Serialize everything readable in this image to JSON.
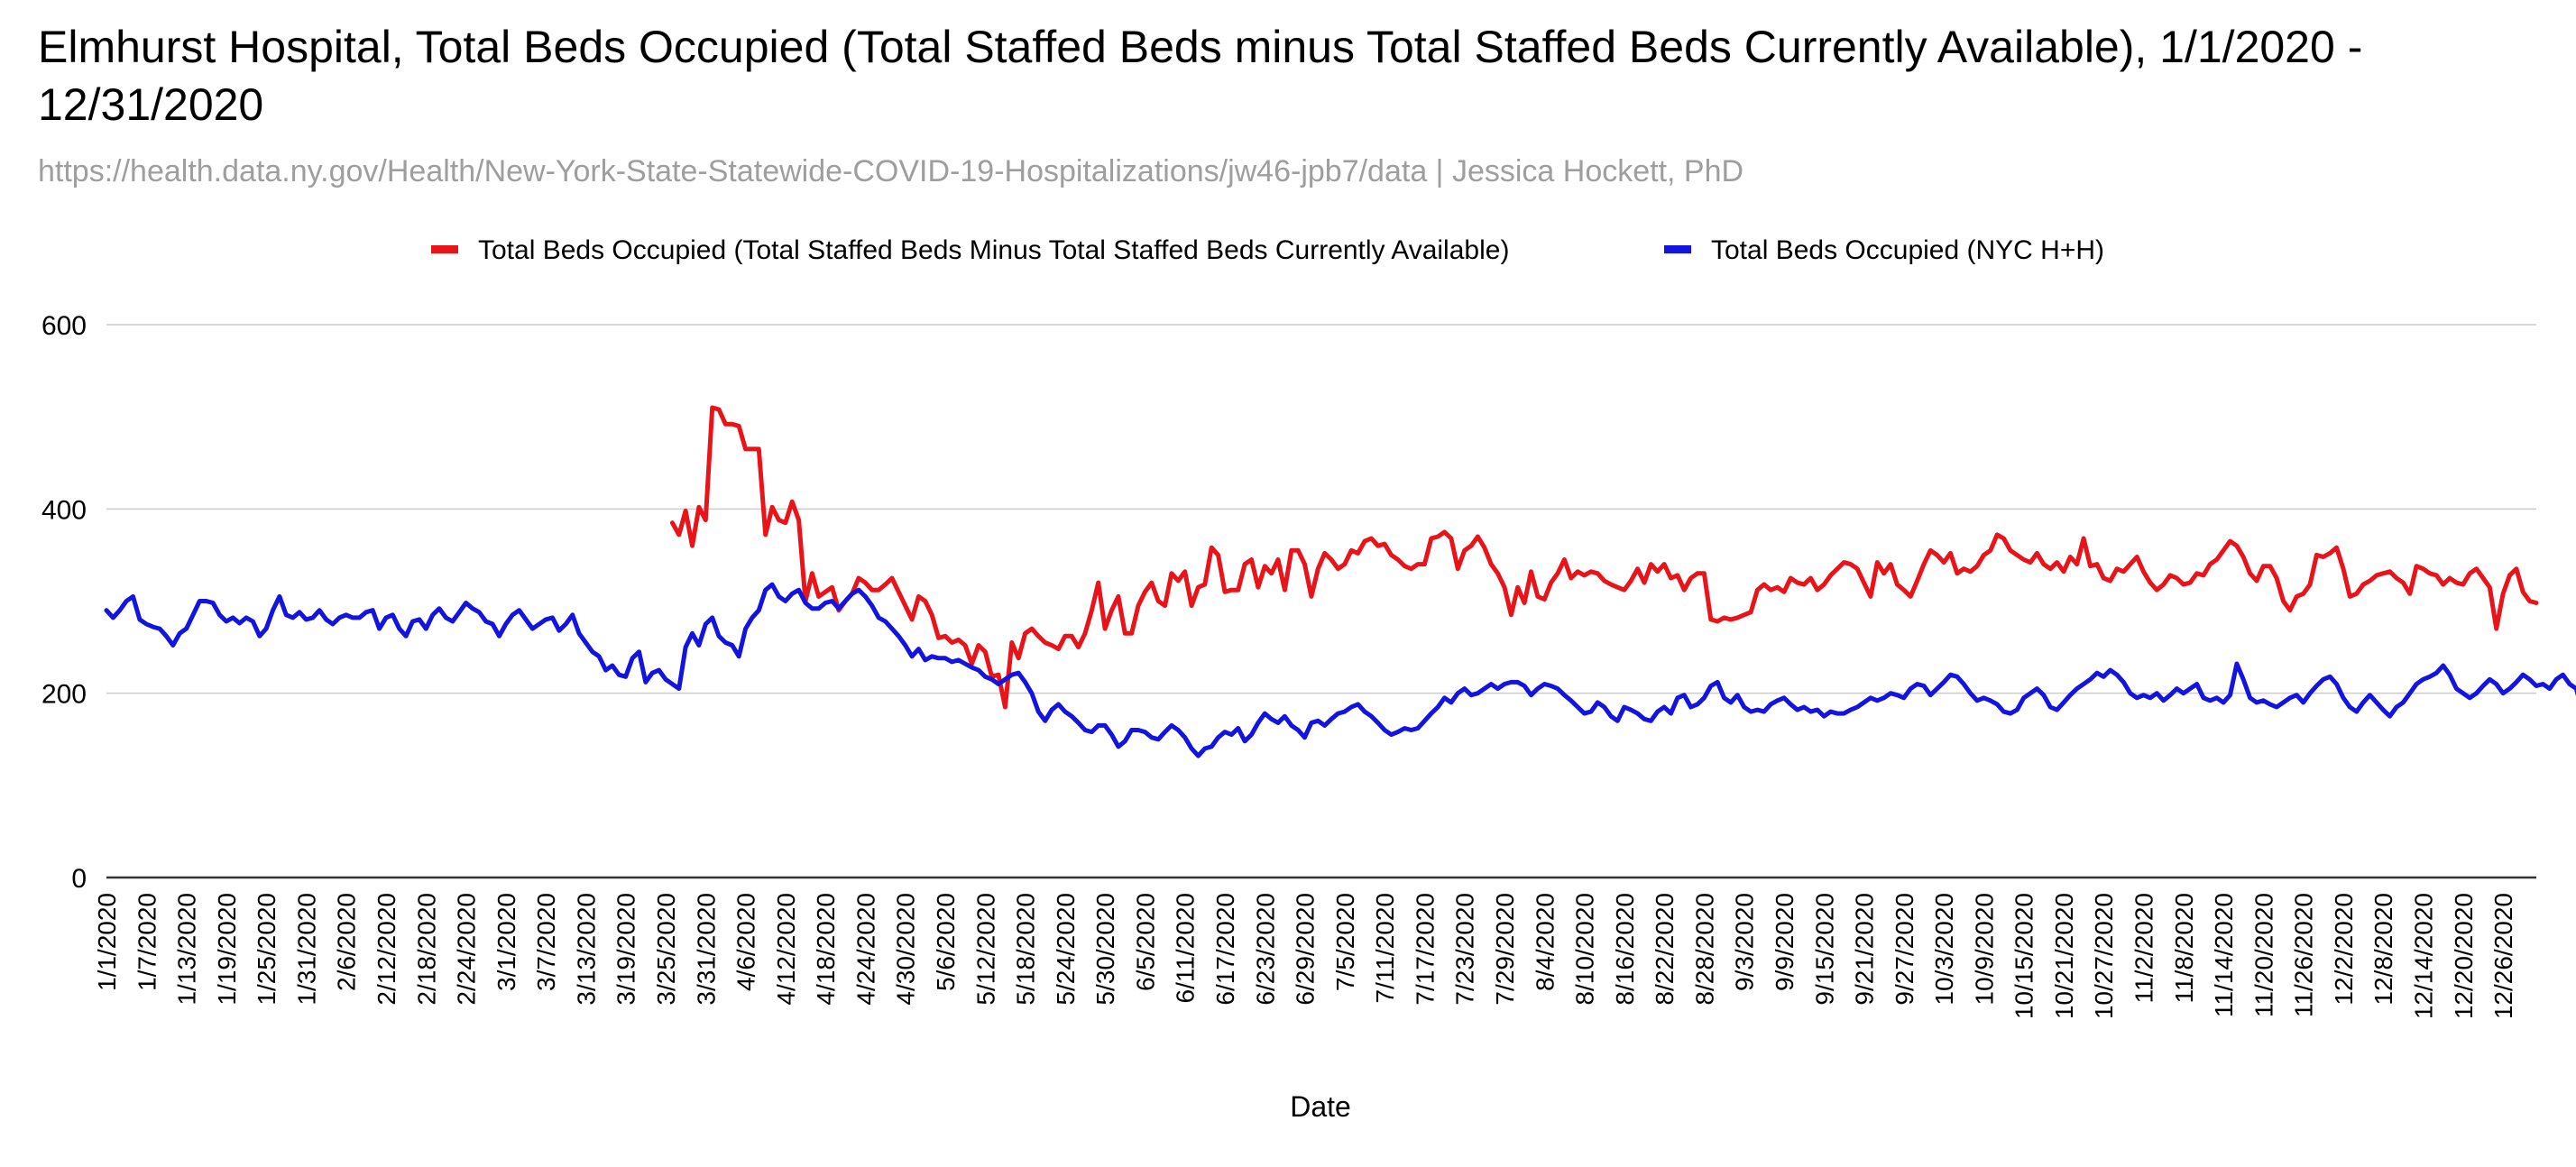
{
  "title": "Elmhurst Hospital, Total Beds Occupied (Total Staffed Beds minus Total Staffed Beds Currently Available), 1/1/2020 - 12/31/2020",
  "subtitle": "https://health.data.ny.gov/Health/New-York-State-Statewide-COVID-19-Hospitalizations/jw46-jpb7/data | Jessica Hockett, PhD",
  "colors": {
    "red_series": "#e8141a",
    "blue_series": "#1414e0",
    "grid": "#cccccc",
    "axis": "#333333"
  },
  "chart_data": {
    "type": "line",
    "xlabel": "Date",
    "ylabel": "",
    "ylim": [
      0,
      600
    ],
    "y_ticks": [
      0,
      200,
      400,
      600
    ],
    "grid": true,
    "legend_position": "top",
    "x_start": "1/1/2020",
    "x_end": "12/31/2020",
    "x_tick_labels": [
      "1/1/2020",
      "1/7/2020",
      "1/13/2020",
      "1/19/2020",
      "1/25/2020",
      "1/31/2020",
      "2/6/2020",
      "2/12/2020",
      "2/18/2020",
      "2/24/2020",
      "3/1/2020",
      "3/7/2020",
      "3/13/2020",
      "3/19/2020",
      "3/25/2020",
      "3/31/2020",
      "4/6/2020",
      "4/12/2020",
      "4/18/2020",
      "4/24/2020",
      "4/30/2020",
      "5/6/2020",
      "5/12/2020",
      "5/18/2020",
      "5/24/2020",
      "5/30/2020",
      "6/5/2020",
      "6/11/2020",
      "6/17/2020",
      "6/23/2020",
      "6/29/2020",
      "7/5/2020",
      "7/11/2020",
      "7/17/2020",
      "7/23/2020",
      "7/29/2020",
      "8/4/2020",
      "8/10/2020",
      "8/16/2020",
      "8/22/2020",
      "8/28/2020",
      "9/3/2020",
      "9/9/2020",
      "9/15/2020",
      "9/21/2020",
      "9/27/2020",
      "10/3/2020",
      "10/9/2020",
      "10/15/2020",
      "10/21/2020",
      "10/27/2020",
      "11/2/2020",
      "11/8/2020",
      "11/14/2020",
      "11/20/2020",
      "11/26/2020",
      "12/2/2020",
      "12/8/2020",
      "12/14/2020",
      "12/20/2020",
      "12/26/2020"
    ],
    "series": [
      {
        "name": "Total Beds Occupied (Total Staffed Beds Minus Total Staffed Beds Currently Available)",
        "color": "#e8141a",
        "x": [
          "3/26/2020",
          "3/27/2020",
          "3/28/2020",
          "3/29/2020",
          "3/30/2020",
          "3/31/2020",
          "4/1/2020",
          "4/2/2020",
          "4/3/2020",
          "4/4/2020",
          "4/5/2020",
          "4/6/2020",
          "4/7/2020",
          "4/8/2020",
          "4/9/2020",
          "4/10/2020",
          "4/11/2020",
          "4/12/2020",
          "4/13/2020",
          "4/14/2020",
          "4/15/2020",
          "4/16/2020",
          "4/17/2020",
          "4/18/2020",
          "4/19/2020",
          "4/20/2020",
          "4/21/2020",
          "4/22/2020",
          "4/23/2020",
          "4/24/2020",
          "4/25/2020",
          "4/26/2020",
          "4/27/2020",
          "4/28/2020",
          "4/29/2020",
          "4/30/2020",
          "5/1/2020",
          "5/2/2020",
          "5/3/2020",
          "5/4/2020",
          "5/5/2020",
          "5/6/2020",
          "5/7/2020",
          "5/8/2020",
          "5/9/2020",
          "5/10/2020",
          "5/11/2020",
          "5/12/2020",
          "5/13/2020",
          "5/14/2020",
          "5/15/2020",
          "5/16/2020",
          "5/17/2020",
          "5/18/2020",
          "5/19/2020",
          "5/20/2020",
          "5/21/2020",
          "5/22/2020",
          "5/23/2020",
          "5/24/2020",
          "5/25/2020",
          "5/26/2020",
          "5/27/2020",
          "5/28/2020",
          "5/29/2020",
          "5/30/2020",
          "5/31/2020",
          "6/1/2020",
          "6/2/2020",
          "6/3/2020",
          "6/4/2020",
          "6/5/2020",
          "6/6/2020",
          "6/7/2020",
          "6/8/2020",
          "6/9/2020",
          "6/10/2020",
          "6/11/2020",
          "6/12/2020",
          "6/13/2020",
          "6/14/2020",
          "6/15/2020",
          "6/16/2020",
          "6/17/2020",
          "6/18/2020",
          "6/19/2020",
          "6/20/2020",
          "6/21/2020",
          "6/22/2020",
          "6/23/2020",
          "6/24/2020",
          "6/25/2020",
          "6/26/2020",
          "6/27/2020",
          "6/28/2020",
          "6/29/2020",
          "6/30/2020",
          "7/1/2020",
          "7/2/2020",
          "7/3/2020",
          "7/4/2020",
          "7/5/2020",
          "7/6/2020",
          "7/7/2020",
          "7/8/2020",
          "7/9/2020",
          "7/10/2020",
          "7/11/2020",
          "7/12/2020",
          "7/13/2020",
          "7/14/2020",
          "7/15/2020",
          "7/16/2020",
          "7/17/2020",
          "7/18/2020",
          "7/19/2020",
          "7/20/2020",
          "7/21/2020",
          "7/22/2020",
          "7/23/2020",
          "7/24/2020",
          "7/25/2020",
          "7/26/2020",
          "7/27/2020",
          "7/28/2020",
          "7/29/2020",
          "7/30/2020",
          "7/31/2020",
          "8/1/2020",
          "8/2/2020",
          "8/3/2020",
          "8/4/2020",
          "8/5/2020",
          "8/6/2020",
          "8/7/2020",
          "8/8/2020",
          "8/9/2020",
          "8/10/2020",
          "8/11/2020",
          "8/12/2020",
          "8/13/2020",
          "8/14/2020",
          "8/15/2020",
          "8/16/2020",
          "8/17/2020",
          "8/18/2020",
          "8/19/2020",
          "8/20/2020",
          "8/21/2020",
          "8/22/2020",
          "8/23/2020",
          "8/24/2020",
          "8/25/2020",
          "8/26/2020",
          "8/27/2020",
          "8/28/2020",
          "8/29/2020",
          "8/30/2020",
          "8/31/2020",
          "9/1/2020",
          "9/2/2020",
          "9/3/2020",
          "9/4/2020",
          "9/5/2020",
          "9/6/2020",
          "9/7/2020",
          "9/8/2020",
          "9/9/2020",
          "9/10/2020",
          "9/11/2020",
          "9/12/2020",
          "9/13/2020",
          "9/14/2020",
          "9/15/2020",
          "9/16/2020",
          "9/17/2020",
          "9/18/2020",
          "9/19/2020",
          "9/20/2020",
          "9/21/2020",
          "9/22/2020",
          "9/23/2020",
          "9/24/2020",
          "9/25/2020",
          "9/26/2020",
          "9/27/2020",
          "9/28/2020",
          "9/29/2020",
          "9/30/2020",
          "10/1/2020",
          "10/2/2020",
          "10/3/2020",
          "10/4/2020",
          "10/5/2020",
          "10/6/2020",
          "10/7/2020",
          "10/8/2020",
          "10/9/2020",
          "10/10/2020",
          "10/11/2020",
          "10/12/2020",
          "10/13/2020",
          "10/14/2020",
          "10/15/2020",
          "10/16/2020",
          "10/17/2020",
          "10/18/2020",
          "10/19/2020",
          "10/20/2020",
          "10/21/2020",
          "10/22/2020",
          "10/23/2020",
          "10/24/2020",
          "10/25/2020",
          "10/26/2020",
          "10/27/2020",
          "10/28/2020",
          "10/29/2020",
          "10/30/2020",
          "10/31/2020",
          "11/1/2020",
          "11/2/2020",
          "11/3/2020",
          "11/4/2020",
          "11/5/2020",
          "11/6/2020",
          "11/7/2020",
          "11/8/2020",
          "11/9/2020",
          "11/10/2020",
          "11/11/2020",
          "11/12/2020",
          "11/13/2020",
          "11/14/2020",
          "11/15/2020",
          "11/16/2020",
          "11/17/2020",
          "11/18/2020",
          "11/19/2020",
          "11/20/2020",
          "11/21/2020",
          "11/22/2020",
          "11/23/2020",
          "11/24/2020",
          "11/25/2020",
          "11/26/2020",
          "11/27/2020",
          "11/28/2020",
          "11/29/2020",
          "11/30/2020",
          "12/1/2020",
          "12/2/2020",
          "12/3/2020",
          "12/4/2020",
          "12/5/2020",
          "12/6/2020",
          "12/7/2020",
          "12/8/2020",
          "12/9/2020",
          "12/10/2020",
          "12/11/2020",
          "12/12/2020",
          "12/13/2020",
          "12/14/2020",
          "12/15/2020",
          "12/16/2020",
          "12/17/2020",
          "12/18/2020",
          "12/19/2020",
          "12/20/2020",
          "12/21/2020",
          "12/22/2020",
          "12/23/2020",
          "12/24/2020",
          "12/25/2020",
          "12/26/2020",
          "12/27/2020",
          "12/28/2020",
          "12/29/2020",
          "12/30/2020",
          "12/31/2020"
        ],
        "y": [
          385,
          372,
          398,
          360,
          402,
          388,
          510,
          508,
          492,
          492,
          490,
          465,
          465,
          465,
          372,
          402,
          388,
          385,
          408,
          388,
          300,
          330,
          305,
          310,
          315,
          290,
          300,
          308,
          325,
          320,
          312,
          312,
          318,
          325,
          310,
          295,
          280,
          305,
          300,
          285,
          260,
          262,
          255,
          258,
          252,
          232,
          252,
          245,
          218,
          220,
          185,
          255,
          238,
          265,
          270,
          262,
          255,
          252,
          248,
          262,
          262,
          250,
          265,
          290,
          320,
          270,
          290,
          305,
          265,
          265,
          295,
          310,
          320,
          300,
          295,
          330,
          322,
          332,
          295,
          315,
          318,
          358,
          350,
          310,
          312,
          312,
          340,
          345,
          315,
          338,
          330,
          345,
          312,
          355,
          355,
          340,
          305,
          335,
          352,
          345,
          335,
          340,
          355,
          352,
          365,
          368,
          360,
          362,
          350,
          345,
          338,
          335,
          340,
          340,
          368,
          370,
          375,
          368,
          335,
          355,
          360,
          370,
          358,
          340,
          330,
          315,
          285,
          315,
          298,
          332,
          305,
          302,
          320,
          330,
          345,
          325,
          332,
          328,
          332,
          330,
          322,
          318,
          315,
          312,
          322,
          335,
          320,
          340,
          332,
          340,
          325,
          328,
          312,
          325,
          330,
          330,
          280,
          278,
          282,
          280,
          282,
          285,
          288,
          312,
          318,
          312,
          315,
          310,
          325,
          320,
          318,
          325,
          312,
          318,
          328,
          335,
          342,
          340,
          335,
          320,
          305,
          342,
          330,
          340,
          318,
          312,
          305,
          322,
          340,
          355,
          350,
          342,
          352,
          330,
          335,
          332,
          338,
          350,
          355,
          372,
          368,
          355,
          350,
          345,
          342,
          352,
          340,
          335,
          342,
          332,
          348,
          340,
          368,
          338,
          340,
          325,
          322,
          335,
          332,
          340,
          348,
          332,
          320,
          312,
          318,
          328,
          325,
          318,
          320,
          330,
          328,
          340,
          345,
          355,
          365,
          360,
          348,
          330,
          322,
          338,
          338,
          325,
          300,
          290,
          305,
          308,
          318,
          350,
          348,
          352,
          358,
          335,
          305,
          308,
          318,
          322,
          328,
          330,
          332,
          325,
          320,
          308,
          338,
          335,
          330,
          328,
          318,
          325,
          320,
          318,
          330,
          335,
          325,
          315,
          270,
          308,
          328,
          335,
          310,
          300,
          298
        ]
      },
      {
        "name": "Total Beds Occupied (NYC H+H)",
        "color": "#1414e0",
        "x": "daily from 1/1/2020 to 12/31/2020",
        "y": [
          290,
          282,
          290,
          300,
          305,
          280,
          275,
          272,
          270,
          262,
          252,
          265,
          270,
          285,
          300,
          300,
          298,
          285,
          278,
          282,
          276,
          282,
          278,
          262,
          270,
          290,
          305,
          285,
          282,
          288,
          280,
          282,
          290,
          280,
          275,
          282,
          285,
          282,
          282,
          288,
          290,
          270,
          282,
          285,
          270,
          262,
          278,
          280,
          270,
          285,
          292,
          282,
          278,
          288,
          298,
          292,
          288,
          278,
          275,
          262,
          275,
          285,
          290,
          280,
          270,
          275,
          280,
          282,
          268,
          275,
          285,
          265,
          255,
          245,
          240,
          225,
          230,
          220,
          218,
          238,
          245,
          212,
          222,
          225,
          215,
          210,
          205,
          250,
          265,
          252,
          275,
          282,
          262,
          255,
          252,
          240,
          270,
          282,
          290,
          312,
          318,
          305,
          300,
          308,
          312,
          298,
          292,
          292,
          298,
          300,
          292,
          300,
          308,
          312,
          305,
          295,
          282,
          278,
          270,
          262,
          252,
          240,
          248,
          236,
          240,
          238,
          238,
          234,
          236,
          232,
          228,
          225,
          218,
          215,
          210,
          215,
          220,
          222,
          212,
          200,
          180,
          170,
          182,
          188,
          180,
          175,
          168,
          160,
          158,
          165,
          165,
          155,
          142,
          148,
          160,
          160,
          158,
          152,
          150,
          158,
          165,
          160,
          152,
          140,
          132,
          140,
          142,
          152,
          158,
          155,
          162,
          148,
          155,
          168,
          178,
          172,
          168,
          175,
          165,
          160,
          152,
          168,
          170,
          165,
          172,
          178,
          180,
          185,
          188,
          180,
          175,
          168,
          160,
          155,
          158,
          162,
          160,
          162,
          170,
          178,
          185,
          195,
          190,
          200,
          205,
          198,
          200,
          205,
          210,
          205,
          210,
          212,
          212,
          208,
          198,
          205,
          210,
          208,
          205,
          198,
          192,
          185,
          178,
          180,
          190,
          185,
          175,
          170,
          185,
          182,
          178,
          172,
          170,
          180,
          185,
          178,
          195,
          198,
          185,
          188,
          195,
          208,
          212,
          195,
          190,
          198,
          185,
          180,
          182,
          180,
          188,
          192,
          195,
          188,
          182,
          185,
          180,
          182,
          175,
          180,
          178,
          178,
          182,
          185,
          190,
          195,
          192,
          195,
          200,
          198,
          195,
          205,
          210,
          208,
          198,
          205,
          212,
          220,
          218,
          210,
          200,
          192,
          195,
          192,
          188,
          180,
          178,
          182,
          195,
          200,
          205,
          198,
          185,
          182,
          190,
          198,
          205,
          210,
          215,
          222,
          218,
          225,
          220,
          212,
          200,
          195,
          198,
          195,
          200,
          192,
          198,
          205,
          200,
          205,
          210,
          195,
          192,
          195,
          190,
          198,
          232,
          215,
          195,
          190,
          192,
          188,
          185,
          190,
          195,
          198,
          190,
          200,
          208,
          215,
          218,
          210,
          195,
          185,
          180,
          190,
          198,
          190,
          182,
          175,
          185,
          190,
          200,
          210,
          215,
          218,
          222,
          230,
          220,
          205,
          200,
          195,
          200,
          208,
          215,
          210,
          200,
          205,
          212,
          220,
          215,
          208,
          210,
          205,
          215,
          220,
          210,
          205,
          178,
          185,
          195,
          210,
          218,
          222,
          225,
          222,
          220,
          218,
          215
        ]
      }
    ]
  }
}
